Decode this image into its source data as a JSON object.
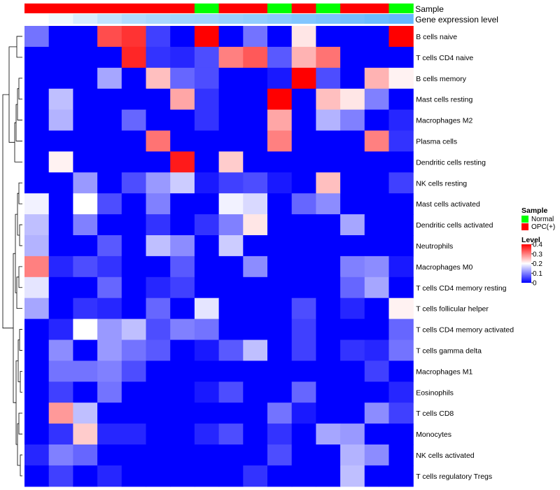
{
  "chart_data": {
    "type": "heatmap",
    "annotation_tracks": [
      {
        "name": "Sample",
        "values": [
          "OPC(+)",
          "OPC(+)",
          "OPC(+)",
          "OPC(+)",
          "OPC(+)",
          "OPC(+)",
          "OPC(+)",
          "Normal",
          "OPC(+)",
          "OPC(+)",
          "Normal",
          "OPC(+)",
          "Normal",
          "OPC(+)",
          "OPC(+)",
          "Normal"
        ]
      },
      {
        "name": "Gene expression level",
        "values": [
          0,
          0.1,
          0.25,
          0.4,
          0.5,
          0.55,
          0.6,
          0.62,
          0.66,
          0.7,
          0.75,
          0.8,
          0.85,
          0.9,
          0.95,
          1.0
        ]
      }
    ],
    "rows": [
      "B cells naive",
      "T cells CD4 naive",
      "B cells memory",
      "Mast cells resting",
      "Macrophages M2",
      "Plasma cells",
      "Dendritic cells resting",
      "NK cells resting",
      "Mast cells activated",
      "Dendritic cells activated",
      "Neutrophils",
      "Macrophages M0",
      "T cells CD4 memory resting",
      "T cells follicular helper",
      "T cells CD4 memory activated",
      "T cells gamma delta",
      "Macrophages M1",
      "Eosinophils",
      "T cells CD8",
      "Monocytes",
      "NK cells activated",
      "T cells regulatory  Tregs"
    ],
    "values": [
      [
        0.09,
        0,
        0,
        0.34,
        0.36,
        0.05,
        0,
        0.4,
        0,
        0.09,
        0,
        0.22,
        0,
        0,
        0,
        0.4
      ],
      [
        0,
        0,
        0,
        0,
        0.37,
        0.04,
        0.03,
        0.06,
        0.3,
        0.33,
        0.07,
        0.26,
        0.31,
        0,
        0,
        0
      ],
      [
        0,
        0,
        0,
        0.13,
        0,
        0.25,
        0.08,
        0.06,
        0,
        0,
        0.02,
        0.4,
        0.06,
        0,
        0.26,
        0.21
      ],
      [
        0,
        0.15,
        0,
        0,
        0,
        0,
        0.27,
        0.04,
        0,
        0,
        0.4,
        0,
        0.25,
        0.22,
        0.1,
        0
      ],
      [
        0,
        0.14,
        0,
        0,
        0.08,
        0,
        0,
        0.04,
        0,
        0,
        0.27,
        0,
        0.14,
        0.1,
        0,
        0.03
      ],
      [
        0,
        0,
        0,
        0,
        0,
        0.31,
        0,
        0,
        0,
        0,
        0.3,
        0,
        0,
        0,
        0.3,
        0.04
      ],
      [
        0,
        0.21,
        0,
        0,
        0,
        0,
        0.38,
        0,
        0.24,
        0,
        0,
        0,
        0,
        0,
        0,
        0
      ],
      [
        0,
        0,
        0.12,
        0,
        0.06,
        0.12,
        0.16,
        0.02,
        0.05,
        0.06,
        0.02,
        0,
        0.25,
        0,
        0,
        0.05
      ],
      [
        0.19,
        0,
        0.2,
        0.06,
        0,
        0.1,
        0,
        0,
        0.19,
        0.17,
        0,
        0.08,
        0.11,
        0,
        0,
        0
      ],
      [
        0.15,
        0,
        0.1,
        0,
        0,
        0.04,
        0,
        0.04,
        0.1,
        0.22,
        0,
        0,
        0,
        0.13,
        0,
        0
      ],
      [
        0.14,
        0,
        0,
        0.07,
        0,
        0.15,
        0.11,
        0,
        0.16,
        0,
        0,
        0,
        0,
        0,
        0,
        0
      ],
      [
        0.3,
        0.03,
        0.06,
        0.04,
        0,
        0,
        0.07,
        0,
        0,
        0.11,
        0,
        0,
        0,
        0.1,
        0.11,
        0.02
      ],
      [
        0.18,
        0,
        0,
        0.08,
        0,
        0.03,
        0.05,
        0,
        0,
        0,
        0,
        0,
        0,
        0.08,
        0.13,
        0
      ],
      [
        0.13,
        0,
        0.04,
        0.03,
        0,
        0.08,
        0,
        0.18,
        0,
        0,
        0,
        0.06,
        0,
        0.03,
        0,
        0.21
      ],
      [
        0,
        0.03,
        0.2,
        0.12,
        0.15,
        0.06,
        0.1,
        0.09,
        0,
        0,
        0,
        0.05,
        0,
        0,
        0,
        0.08
      ],
      [
        0,
        0.11,
        0,
        0.12,
        0.09,
        0.07,
        0,
        0.02,
        0.07,
        0.15,
        0,
        0.05,
        0,
        0.04,
        0.03,
        0.09
      ],
      [
        0,
        0.09,
        0.09,
        0.1,
        0.06,
        0,
        0,
        0,
        0,
        0,
        0,
        0,
        0,
        0,
        0.05,
        0
      ],
      [
        0,
        0.05,
        0,
        0.09,
        0,
        0,
        0,
        0.02,
        0.06,
        0,
        0,
        0.08,
        0,
        0,
        0,
        0.03
      ],
      [
        0,
        0.28,
        0.15,
        0,
        0,
        0,
        0,
        0,
        0,
        0,
        0.09,
        0.02,
        0,
        0,
        0.11,
        0.05
      ],
      [
        0,
        0.04,
        0.24,
        0.03,
        0.03,
        0,
        0,
        0.03,
        0.06,
        0,
        0.04,
        0,
        0.13,
        0.12,
        0,
        0
      ],
      [
        0.03,
        0.1,
        0.08,
        0,
        0,
        0,
        0,
        0,
        0,
        0,
        0.06,
        0,
        0,
        0.14,
        0.11,
        0
      ],
      [
        0,
        0.05,
        0,
        0.03,
        0,
        0,
        0,
        0,
        0,
        0.04,
        0,
        0,
        0,
        0.15,
        0,
        0
      ]
    ],
    "legend": {
      "sample_title": "Sample",
      "sample_entries": [
        {
          "label": "Normal",
          "color": "#00ff00"
        },
        {
          "label": "OPC(+)",
          "color": "#ff0000"
        }
      ],
      "level_title": "Level",
      "level_ticks": [
        "0.4",
        "0.3",
        "0.2",
        "0.1",
        "0"
      ],
      "level_tick_values": [
        0.4,
        0.3,
        0.2,
        0.1,
        0
      ]
    },
    "color_scale": {
      "low": "#0000ff",
      "mid": "#ffffff",
      "high": "#ff0000",
      "min": 0,
      "max": 0.4
    },
    "annotation_colors": {
      "Normal": "#00ff00",
      "OPC(+)": "#ff0000",
      "level_low": "#ffffff",
      "level_high": "#63b8ff"
    }
  }
}
